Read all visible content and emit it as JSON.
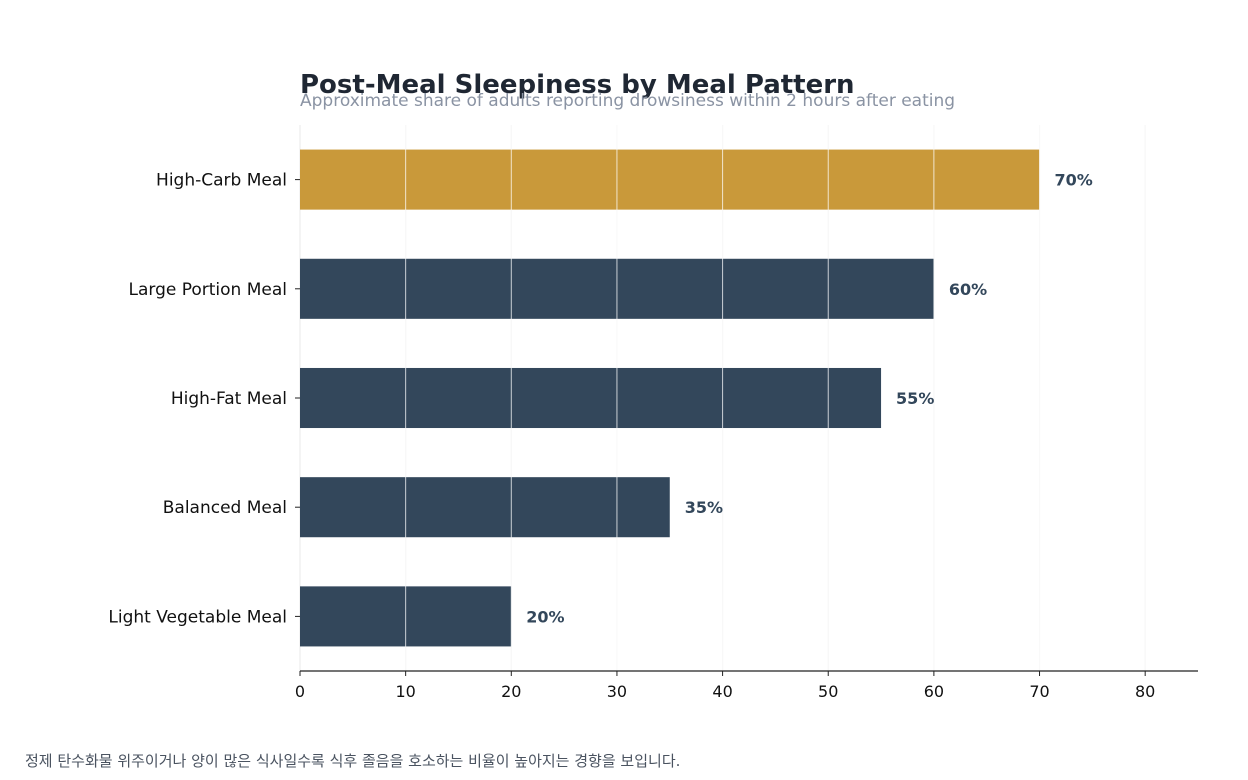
{
  "chart_data": {
    "type": "bar",
    "orientation": "horizontal",
    "title": "Post-Meal Sleepiness by Meal Pattern",
    "subtitle": "Approximate share of adults reporting drowsiness within 2 hours after eating",
    "categories": [
      "High-Carb Meal",
      "Large Portion Meal",
      "High-Fat Meal",
      "Balanced Meal",
      "Light Vegetable Meal"
    ],
    "values": [
      70,
      60,
      55,
      35,
      20
    ],
    "value_labels": [
      "70%",
      "60%",
      "55%",
      "35%",
      "20%"
    ],
    "highlight_index": 0,
    "xlim": [
      0,
      85
    ],
    "x_ticks": [
      0,
      10,
      20,
      30,
      40,
      50,
      60,
      70,
      80
    ],
    "x_tick_labels": [
      "0",
      "10",
      "20",
      "30",
      "40",
      "50",
      "60",
      "70",
      "80"
    ],
    "grid": true,
    "legend": "none",
    "colors": {
      "bar": "#33475b",
      "highlight": "#c9993a",
      "grid": "#e8e8e8",
      "value_label": "#33475b"
    }
  },
  "footnote": "정제 탄수화물 위주이거나 양이 많은 식사일수록 식후 졸음을 호소하는 비율이 높아지는 경향을 보입니다."
}
